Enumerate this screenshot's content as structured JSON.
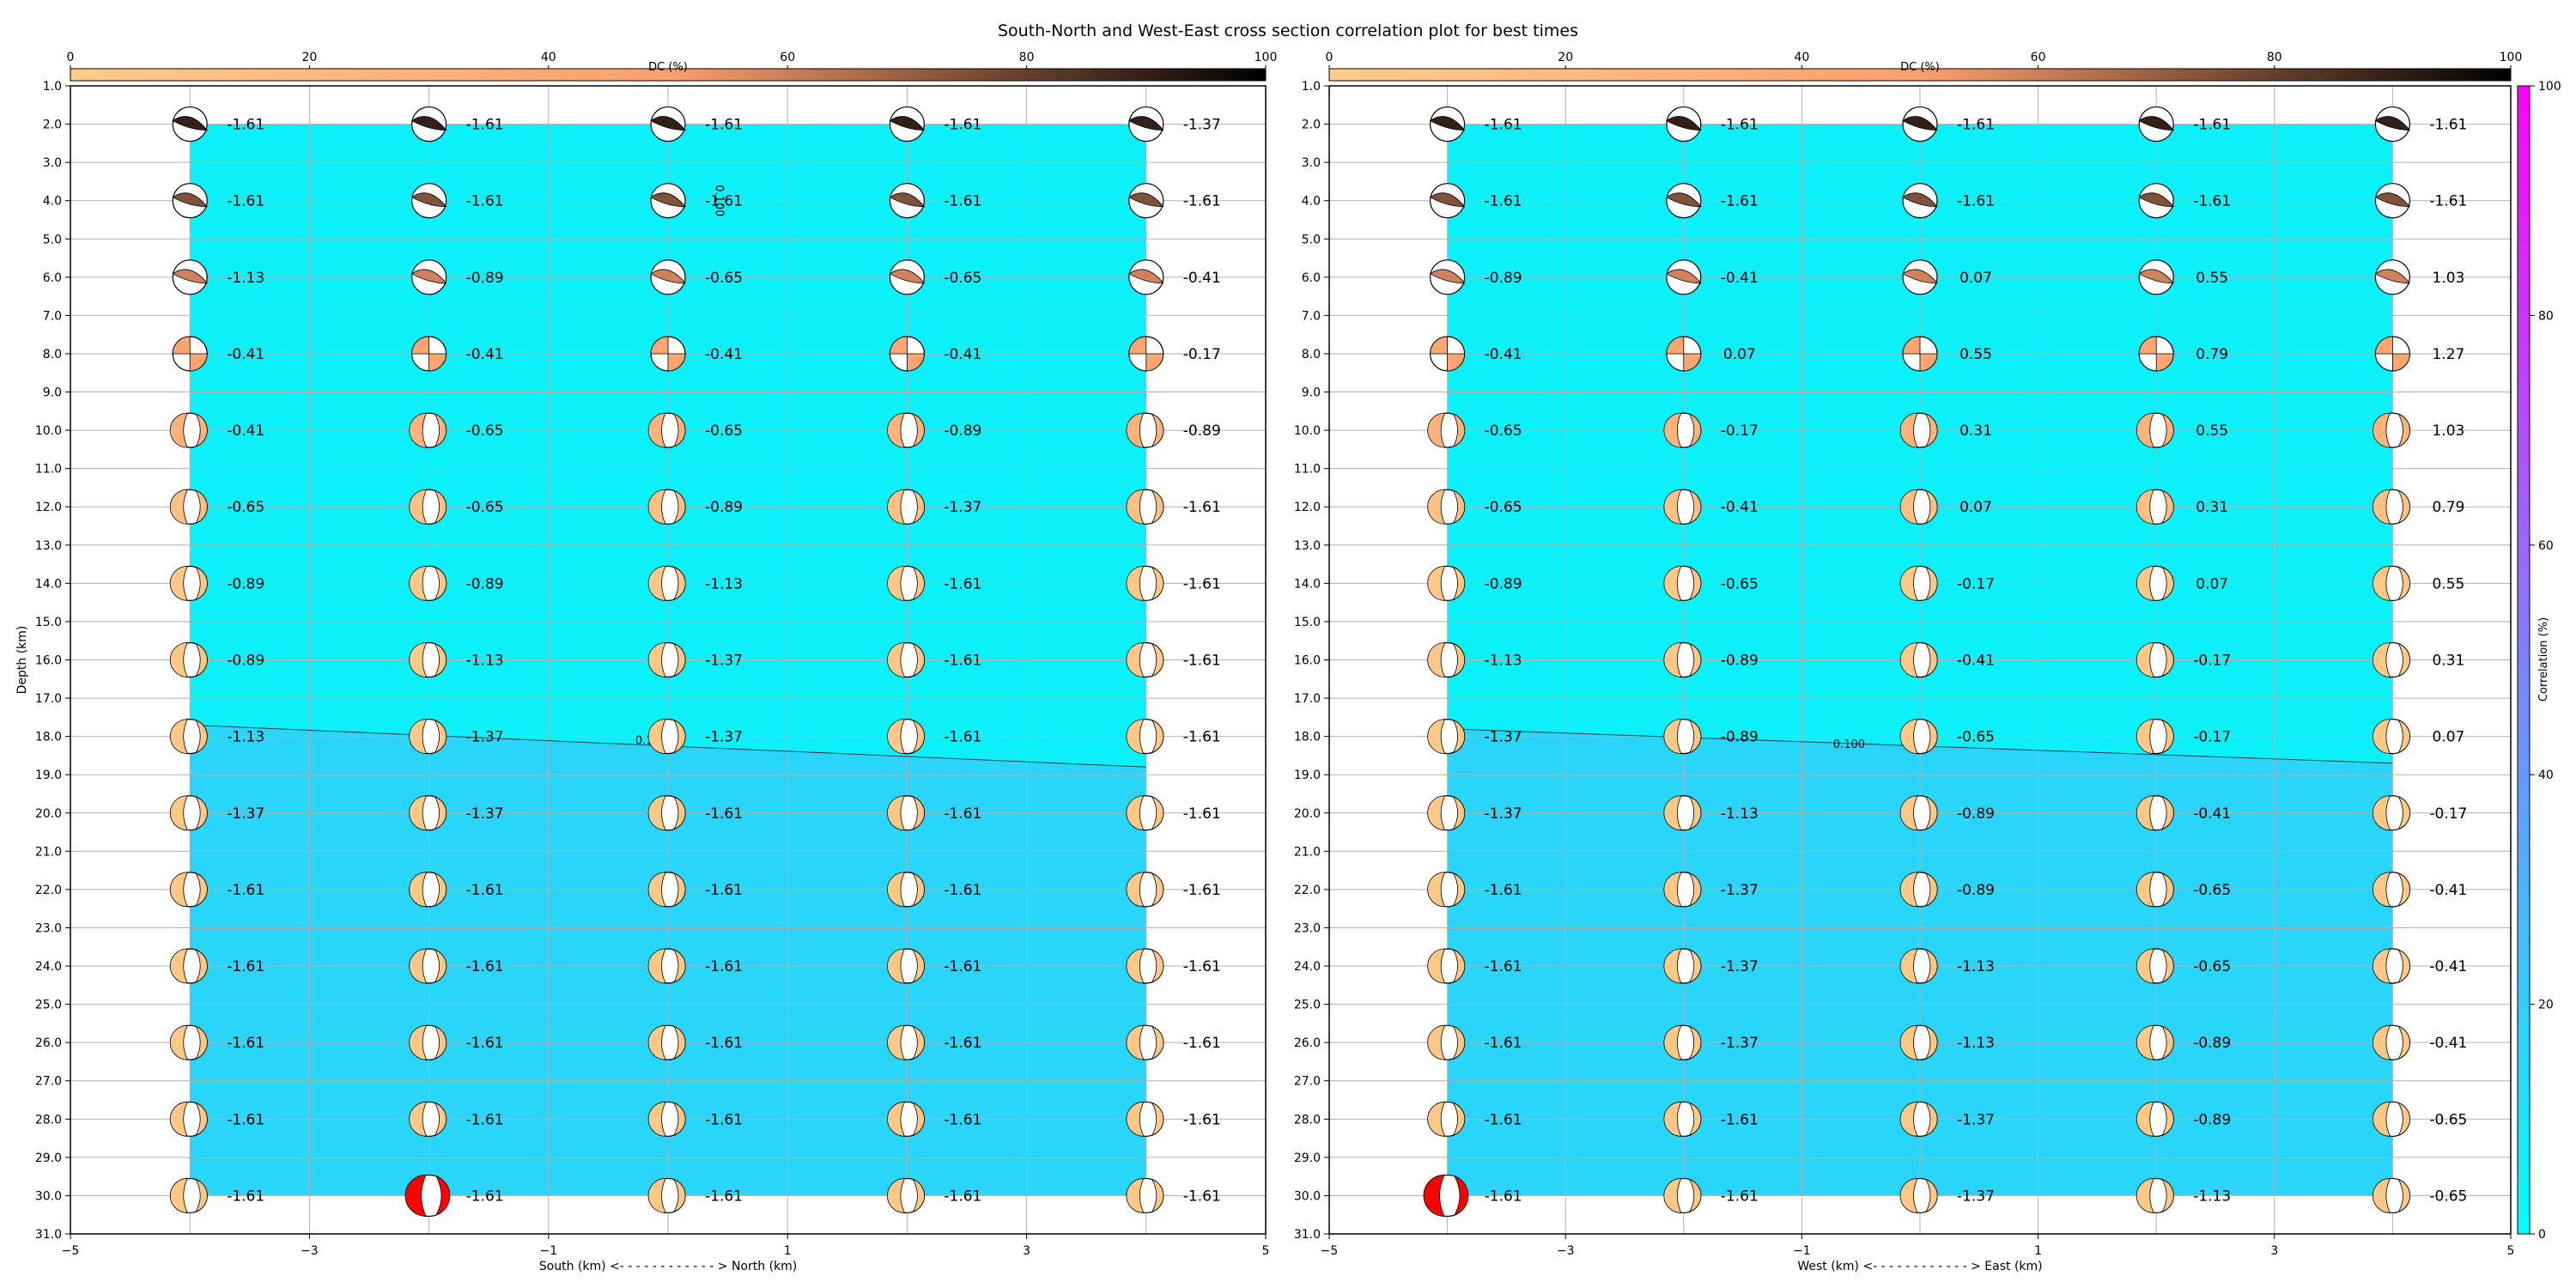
{
  "figure": {
    "title": "South-North and West-East cross section correlation plot for best times"
  },
  "chart_data": [
    {
      "type": "heatmap",
      "xlabel": "South (km) <- - - - - - - - - - - - > North (km)",
      "ylabel": "Depth (km)",
      "xlim": [
        -5,
        5
      ],
      "ylim": [
        31,
        1
      ],
      "x_ticks": [
        "−5",
        "−3",
        "−1",
        "1",
        "3",
        "5"
      ],
      "y_ticks": [
        "1.0",
        "2.0",
        "3.0",
        "4.0",
        "5.0",
        "6.0",
        "7.0",
        "8.0",
        "9.0",
        "10.0",
        "11.0",
        "12.0",
        "13.0",
        "14.0",
        "15.0",
        "16.0",
        "17.0",
        "18.0",
        "19.0",
        "20.0",
        "21.0",
        "22.0",
        "23.0",
        "24.0",
        "25.0",
        "26.0",
        "27.0",
        "28.0",
        "29.0",
        "30.0",
        "31.0"
      ],
      "grid": true,
      "dc_colorbar": {
        "label": "DC (%)",
        "range": [
          0,
          100
        ],
        "ticks": [
          "0",
          "20",
          "40",
          "60",
          "80",
          "100"
        ]
      },
      "x": [
        -4,
        -2,
        0,
        2,
        4
      ],
      "depths": [
        2,
        4,
        6,
        8,
        10,
        12,
        14,
        16,
        18,
        20,
        22,
        24,
        26,
        28,
        30
      ],
      "value_labels": [
        [
          "-1.61",
          "-1.61",
          "-1.61",
          "-1.61",
          "-1.37"
        ],
        [
          "-1.61",
          "-1.61",
          "-1.61",
          "-1.61",
          "-1.61"
        ],
        [
          "-1.13",
          "-0.89",
          "-0.65",
          "-0.65",
          "-0.41"
        ],
        [
          "-0.41",
          "-0.41",
          "-0.41",
          "-0.41",
          "-0.17"
        ],
        [
          "-0.41",
          "-0.65",
          "-0.65",
          "-0.89",
          "-0.89"
        ],
        [
          "-0.65",
          "-0.65",
          "-0.89",
          "-1.37",
          "-1.61"
        ],
        [
          "-0.89",
          "-0.89",
          "-1.13",
          "-1.61",
          "-1.61"
        ],
        [
          "-0.89",
          "-1.13",
          "-1.37",
          "-1.61",
          "-1.61"
        ],
        [
          "-1.13",
          "-1.37",
          "-1.37",
          "-1.61",
          "-1.61"
        ],
        [
          "-1.37",
          "-1.37",
          "-1.61",
          "-1.61",
          "-1.61"
        ],
        [
          "-1.61",
          "-1.61",
          "-1.61",
          "-1.61",
          "-1.61"
        ],
        [
          "-1.61",
          "-1.61",
          "-1.61",
          "-1.61",
          "-1.61"
        ],
        [
          "-1.61",
          "-1.61",
          "-1.61",
          "-1.61",
          "-1.61"
        ],
        [
          "-1.61",
          "-1.61",
          "-1.61",
          "-1.61",
          "-1.61"
        ],
        [
          "-1.61",
          "-1.61",
          "-1.61",
          "-1.61",
          "-1.61"
        ]
      ],
      "best_solution": {
        "x": -2,
        "depth": 30
      },
      "contour": {
        "label": "0.100",
        "points": [
          [
            -4,
            17.7
          ],
          [
            4,
            18.8
          ]
        ]
      },
      "contour_labels": [
        {
          "text": "0.100",
          "x": 0.4,
          "depth": 4.0,
          "rotate": 90
        },
        {
          "text": "0.1",
          "x": -0.2,
          "depth": 18.2
        }
      ]
    },
    {
      "type": "heatmap",
      "xlabel": "West (km) <- - - - - - - - - - - - > East (km)",
      "ylabel": "",
      "xlim": [
        -5,
        5
      ],
      "ylim": [
        31,
        1
      ],
      "x_ticks": [
        "−5",
        "−3",
        "−1",
        "1",
        "3",
        "5"
      ],
      "y_ticks": [
        "1.0",
        "2.0",
        "3.0",
        "4.0",
        "5.0",
        "6.0",
        "7.0",
        "8.0",
        "9.0",
        "10.0",
        "11.0",
        "12.0",
        "13.0",
        "14.0",
        "15.0",
        "16.0",
        "17.0",
        "18.0",
        "19.0",
        "20.0",
        "21.0",
        "22.0",
        "23.0",
        "24.0",
        "25.0",
        "26.0",
        "27.0",
        "28.0",
        "29.0",
        "30.0",
        "31.0"
      ],
      "grid": true,
      "dc_colorbar": {
        "label": "DC (%)",
        "range": [
          0,
          100
        ],
        "ticks": [
          "0",
          "20",
          "40",
          "60",
          "80",
          "100"
        ]
      },
      "x": [
        -4,
        -2,
        0,
        2,
        4
      ],
      "depths": [
        2,
        4,
        6,
        8,
        10,
        12,
        14,
        16,
        18,
        20,
        22,
        24,
        26,
        28,
        30
      ],
      "value_labels": [
        [
          "-1.61",
          "-1.61",
          "-1.61",
          "-1.61",
          "-1.61"
        ],
        [
          "-1.61",
          "-1.61",
          "-1.61",
          "-1.61",
          "-1.61"
        ],
        [
          "-0.89",
          "-0.41",
          "0.07",
          "0.55",
          "1.03"
        ],
        [
          "-0.41",
          "0.07",
          "0.55",
          "0.79",
          "1.27"
        ],
        [
          "-0.65",
          "-0.17",
          "0.31",
          "0.55",
          "1.03"
        ],
        [
          "-0.65",
          "-0.41",
          "0.07",
          "0.31",
          "0.79"
        ],
        [
          "-0.89",
          "-0.65",
          "-0.17",
          "0.07",
          "0.55"
        ],
        [
          "-1.13",
          "-0.89",
          "-0.41",
          "-0.17",
          "0.31"
        ],
        [
          "-1.37",
          "-0.89",
          "-0.65",
          "-0.17",
          "0.07"
        ],
        [
          "-1.37",
          "-1.13",
          "-0.89",
          "-0.41",
          "-0.17"
        ],
        [
          "-1.61",
          "-1.37",
          "-0.89",
          "-0.65",
          "-0.41"
        ],
        [
          "-1.61",
          "-1.37",
          "-1.13",
          "-0.65",
          "-0.41"
        ],
        [
          "-1.61",
          "-1.37",
          "-1.13",
          "-0.89",
          "-0.41"
        ],
        [
          "-1.61",
          "-1.61",
          "-1.37",
          "-0.89",
          "-0.65"
        ],
        [
          "-1.61",
          "-1.61",
          "-1.37",
          "-1.13",
          "-0.65"
        ]
      ],
      "best_solution": {
        "x": -4,
        "depth": 30
      },
      "contour": {
        "label": "0.100",
        "points": [
          [
            -4,
            17.8
          ],
          [
            4,
            18.7
          ]
        ]
      },
      "contour_labels": [
        {
          "text": "0.100",
          "x": -0.6,
          "depth": 18.3
        }
      ]
    }
  ],
  "correlation_colorbar": {
    "label": "Correlation (%)",
    "range": [
      0,
      100
    ],
    "ticks": [
      "0",
      "20",
      "40",
      "60",
      "80",
      "100"
    ],
    "colors": [
      "#00ffff",
      "#ff00ff"
    ]
  },
  "fields": {
    "upper_fill": "#0cf0fa",
    "lower_fill": "#29d6fa",
    "best_color": "#ff0000",
    "dc_colors": [
      "#ffcd8a",
      "#ff9f6f",
      "#000000"
    ]
  }
}
